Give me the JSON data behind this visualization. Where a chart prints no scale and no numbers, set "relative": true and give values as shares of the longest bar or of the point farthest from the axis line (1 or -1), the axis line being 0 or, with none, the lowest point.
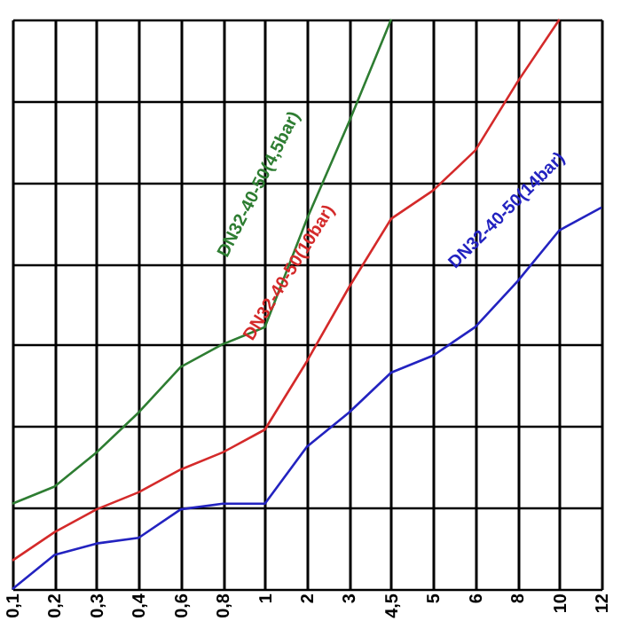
{
  "chart_data": {
    "type": "line",
    "relative": true,
    "grid": true,
    "legend": false,
    "marker": "none",
    "line_style": "solid",
    "categories": [
      "0,1",
      "0,2",
      "0,3",
      "0,4",
      "0,6",
      "0,8",
      "1",
      "2",
      "3",
      "4,5",
      "5",
      "6",
      "8",
      "10",
      "12"
    ],
    "series": [
      {
        "name": "DN32-40-50(4,5bar)",
        "color": "#2e7d32",
        "values": [
          0.15,
          0.18,
          0.24,
          0.31,
          0.39,
          0.43,
          0.46,
          0.65,
          0.82,
          1.0,
          null,
          null,
          null,
          null,
          null
        ]
      },
      {
        "name": "DN32-40-50(10bar)",
        "color": "#d42a2a",
        "values": [
          0.05,
          0.1,
          0.14,
          0.17,
          0.21,
          0.24,
          0.28,
          0.4,
          0.53,
          0.65,
          0.7,
          0.77,
          0.89,
          1.0,
          null
        ]
      },
      {
        "name": "DN32-40-50(14bar)",
        "color": "#2323c0",
        "values": [
          0.0,
          0.06,
          0.08,
          0.09,
          0.14,
          0.15,
          0.15,
          0.25,
          0.31,
          0.38,
          0.41,
          0.46,
          0.54,
          0.63,
          0.67
        ]
      }
    ]
  }
}
